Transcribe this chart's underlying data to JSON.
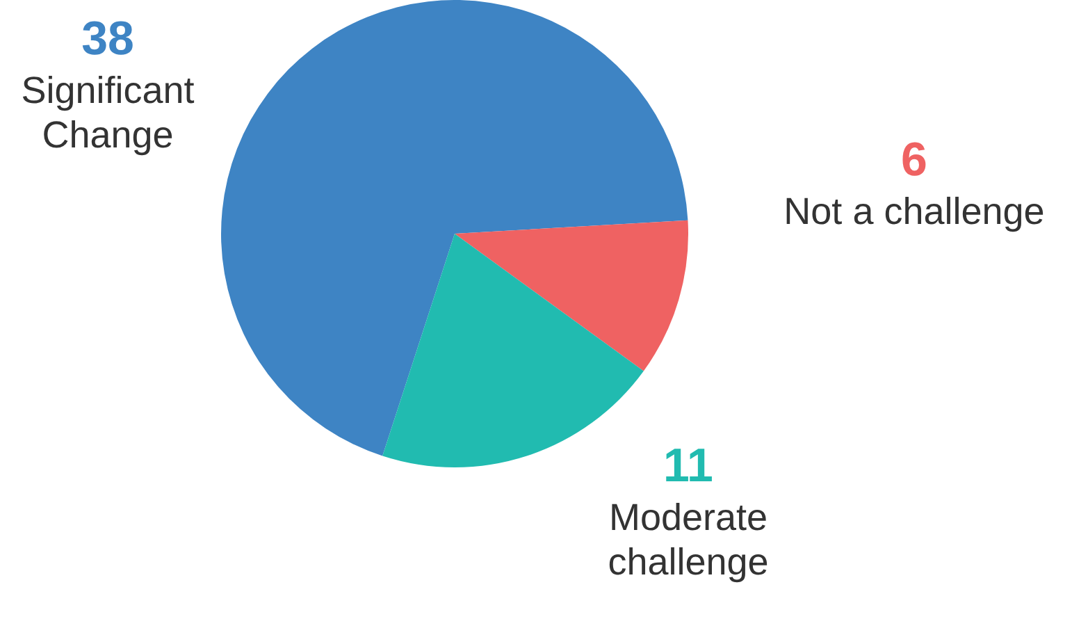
{
  "chart_data": {
    "type": "pie",
    "categories": [
      "Significant Change",
      "Not a challenge",
      "Moderate challenge"
    ],
    "values": [
      38,
      6,
      11
    ],
    "colors": [
      "#3e84c4",
      "#ef6262",
      "#21bbb0"
    ],
    "data_labels": true,
    "legend": false
  }
}
